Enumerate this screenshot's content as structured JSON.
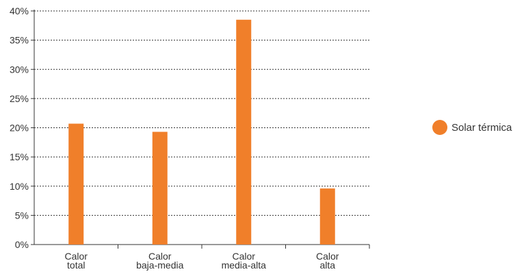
{
  "chart_data": {
    "type": "bar",
    "categories": [
      [
        "Calor",
        "total"
      ],
      [
        "Calor",
        "baja-media"
      ],
      [
        "Calor",
        "media-alta"
      ],
      [
        "Calor",
        "alta"
      ]
    ],
    "series": [
      {
        "name": "Solar térmica",
        "values": [
          20.7,
          19.3,
          38.5,
          9.6
        ]
      }
    ],
    "yticks": [
      "0%",
      "5%",
      "10%",
      "15%",
      "20%",
      "25%",
      "30%",
      "35%",
      "40%"
    ],
    "ylim": [
      0,
      40
    ],
    "grid": true,
    "legend_position": "right",
    "colors": {
      "bar": "#f07f2a",
      "grid": "#333333",
      "axis": "#333333"
    }
  }
}
